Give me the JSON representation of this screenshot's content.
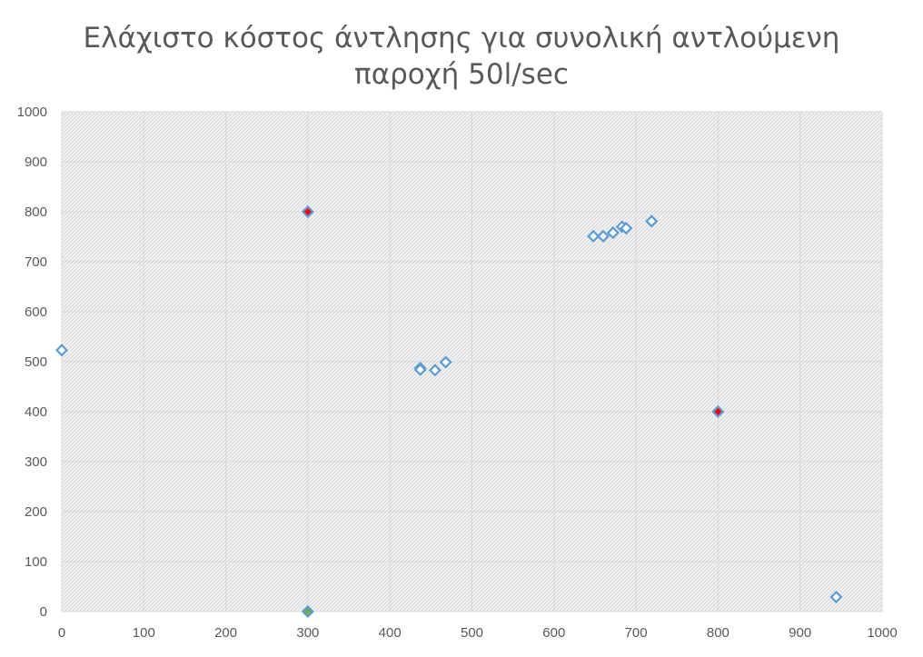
{
  "chart_data": {
    "type": "scatter",
    "title_line1": "Ελάχιστο κόστος άντλησης για συνολική αντλούμενη",
    "title_line2": "παροχή 50l/sec",
    "xlim": [
      0,
      1000
    ],
    "ylim": [
      0,
      1000
    ],
    "x_ticks": [
      "0",
      "100",
      "200",
      "300",
      "400",
      "500",
      "600",
      "700",
      "800",
      "900",
      "1000"
    ],
    "y_ticks": [
      "0",
      "100",
      "200",
      "300",
      "400",
      "500",
      "600",
      "700",
      "800",
      "900",
      "1000"
    ],
    "grid": true,
    "legend": "none",
    "series": [
      {
        "marker": "diamond-hollow",
        "color": "#5b9bd5",
        "points": [
          {
            "x": 0,
            "y": 523
          },
          {
            "x": 437,
            "y": 487
          },
          {
            "x": 437,
            "y": 484
          },
          {
            "x": 455,
            "y": 483
          },
          {
            "x": 468,
            "y": 499
          },
          {
            "x": 648,
            "y": 751
          },
          {
            "x": 660,
            "y": 751
          },
          {
            "x": 672,
            "y": 758
          },
          {
            "x": 683,
            "y": 770
          },
          {
            "x": 688,
            "y": 767
          },
          {
            "x": 719,
            "y": 781
          },
          {
            "x": 944,
            "y": 29
          }
        ]
      },
      {
        "marker": "diamond-filled",
        "color": "#ff0000",
        "outline": "#5b9bd5",
        "points": [
          {
            "x": 300,
            "y": 800
          },
          {
            "x": 800,
            "y": 400
          }
        ]
      },
      {
        "marker": "diamond-filled",
        "color": "#70ad47",
        "outline": "#5b9bd5",
        "points": [
          {
            "x": 300,
            "y": 0
          }
        ]
      }
    ]
  }
}
